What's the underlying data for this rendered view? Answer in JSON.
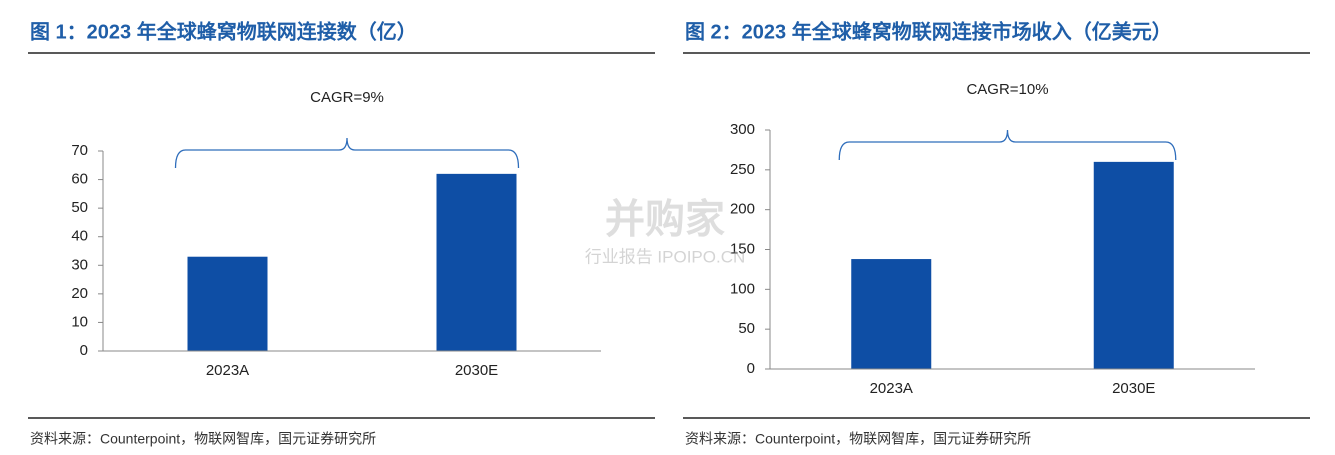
{
  "chart_data": [
    {
      "type": "bar",
      "title": "图 1：2023 年全球蜂窝物联网连接数（亿）",
      "annotation": "CAGR=9%",
      "categories": [
        "2023A",
        "2030E"
      ],
      "values": [
        33,
        62
      ],
      "color": "#0e4ea5",
      "ylim": [
        0,
        70
      ],
      "yticks": [
        0,
        10,
        20,
        30,
        40,
        50,
        60,
        70
      ],
      "source": "资料来源：Counterpoint，物联网智库，国元证券研究所"
    },
    {
      "type": "bar",
      "title": "图 2：2023 年全球蜂窝物联网连接市场收入（亿美元）",
      "annotation": "CAGR=10%",
      "categories": [
        "2023A",
        "2030E"
      ],
      "values": [
        138,
        260
      ],
      "color": "#0e4ea5",
      "ylim": [
        0,
        300
      ],
      "yticks": [
        0,
        50,
        100,
        150,
        200,
        250,
        300
      ],
      "source": "资料来源：Counterpoint，物联网智库，国元证券研究所"
    }
  ],
  "watermark": {
    "brand": "并购家",
    "tagline": "行业报告 IPOIPO.CN"
  }
}
